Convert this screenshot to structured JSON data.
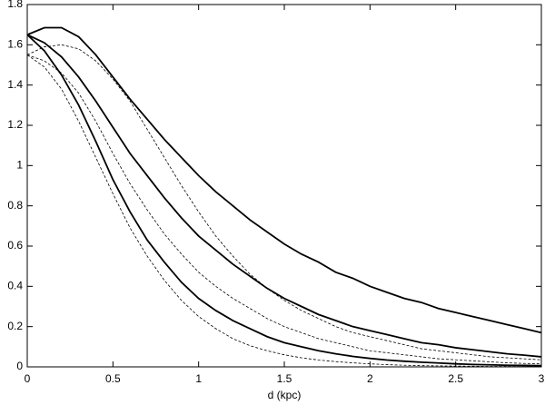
{
  "chart_data": {
    "type": "line",
    "x_label": "d (kpc)",
    "x": [
      0,
      0.1,
      0.2,
      0.3,
      0.4,
      0.5,
      0.6,
      0.7,
      0.8,
      0.9,
      1.0,
      1.1,
      1.2,
      1.3,
      1.4,
      1.5,
      1.6,
      1.7,
      1.8,
      1.9,
      2.0,
      2.1,
      2.2,
      2.3,
      2.4,
      2.5,
      2.6,
      2.7,
      2.8,
      2.9,
      3.0
    ],
    "series": [
      {
        "color": "#000000",
        "dashed": false,
        "values": [
          1.65,
          1.685,
          1.685,
          1.64,
          1.55,
          1.44,
          1.33,
          1.23,
          1.13,
          1.04,
          0.95,
          0.87,
          0.8,
          0.73,
          0.67,
          0.61,
          0.56,
          0.52,
          0.47,
          0.44,
          0.4,
          0.37,
          0.34,
          0.32,
          0.29,
          0.27,
          0.25,
          0.23,
          0.21,
          0.19,
          0.17
        ]
      },
      {
        "color": "#000000",
        "dashed": false,
        "values": [
          1.65,
          1.61,
          1.54,
          1.44,
          1.32,
          1.19,
          1.06,
          0.95,
          0.84,
          0.74,
          0.65,
          0.58,
          0.51,
          0.45,
          0.39,
          0.34,
          0.3,
          0.26,
          0.23,
          0.2,
          0.18,
          0.16,
          0.14,
          0.12,
          0.11,
          0.095,
          0.085,
          0.075,
          0.065,
          0.058,
          0.05
        ]
      },
      {
        "color": "#000000",
        "dashed": false,
        "values": [
          1.65,
          1.57,
          1.45,
          1.3,
          1.12,
          0.93,
          0.77,
          0.63,
          0.52,
          0.42,
          0.34,
          0.28,
          0.23,
          0.19,
          0.15,
          0.12,
          0.1,
          0.08,
          0.065,
          0.052,
          0.042,
          0.034,
          0.028,
          0.023,
          0.019,
          0.015,
          0.012,
          0.01,
          0.008,
          0.007,
          0.006
        ]
      },
      {
        "color": "#000000",
        "dashed": true,
        "values": [
          1.55,
          1.59,
          1.6,
          1.58,
          1.52,
          1.43,
          1.32,
          1.18,
          1.04,
          0.9,
          0.77,
          0.65,
          0.55,
          0.46,
          0.39,
          0.33,
          0.28,
          0.24,
          0.2,
          0.17,
          0.15,
          0.13,
          0.11,
          0.09,
          0.08,
          0.07,
          0.06,
          0.05,
          0.045,
          0.04,
          0.035
        ]
      },
      {
        "color": "#000000",
        "dashed": true,
        "values": [
          1.55,
          1.52,
          1.46,
          1.36,
          1.22,
          1.06,
          0.91,
          0.78,
          0.66,
          0.56,
          0.47,
          0.4,
          0.34,
          0.29,
          0.24,
          0.2,
          0.17,
          0.14,
          0.12,
          0.1,
          0.08,
          0.07,
          0.06,
          0.05,
          0.04,
          0.035,
          0.03,
          0.025,
          0.02,
          0.017,
          0.015
        ]
      },
      {
        "color": "#000000",
        "dashed": true,
        "values": [
          1.55,
          1.49,
          1.38,
          1.22,
          1.04,
          0.86,
          0.69,
          0.55,
          0.43,
          0.33,
          0.25,
          0.19,
          0.14,
          0.105,
          0.08,
          0.06,
          0.045,
          0.034,
          0.026,
          0.02,
          0.015,
          0.011,
          0.008,
          0.006,
          0.005,
          0.004,
          0.003,
          0.002,
          0.002,
          0.001,
          0.001
        ]
      }
    ],
    "xlim": [
      0,
      3
    ],
    "xticks": [
      0,
      0.5,
      1,
      1.5,
      2,
      2.5,
      3
    ],
    "ylim": [
      0,
      1.8
    ],
    "yticks": [
      0,
      0.2,
      0.4,
      0.6,
      0.8,
      1,
      1.2,
      1.4,
      1.6,
      1.8
    ]
  }
}
